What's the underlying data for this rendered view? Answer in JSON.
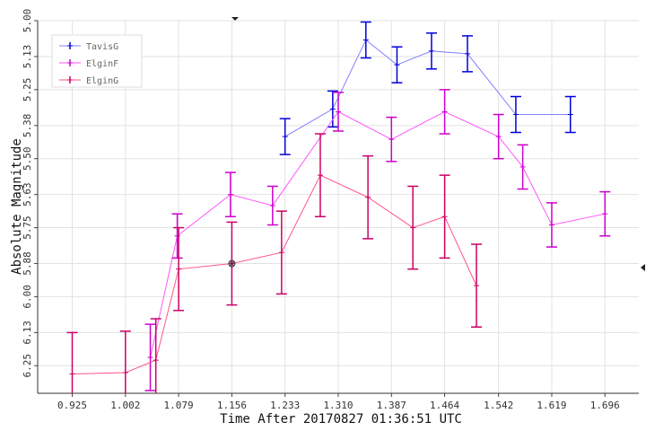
{
  "chart_data": {
    "type": "line",
    "xlabel": "Time After 20170827 01:36:51 UTC",
    "ylabel": "Absolute Magnitude",
    "xlim": [
      0.875,
      1.745
    ],
    "ylim": [
      6.35,
      5.0
    ],
    "y_inverted": true,
    "grid": true,
    "legend_position": "top-left",
    "x_ticks": [
      "0.925",
      "1.002",
      "1.079",
      "1.156",
      "1.233",
      "1.310",
      "1.387",
      "1.464",
      "1.542",
      "1.619",
      "1.696"
    ],
    "y_ticks": [
      "5.00",
      "5.13",
      "5.25",
      "5.38",
      "5.50",
      "5.63",
      "5.75",
      "5.88",
      "6.00",
      "6.13",
      "6.25"
    ],
    "series": [
      {
        "name": "TavisG",
        "color": "#0000dd",
        "line_color": "#8080ff",
        "points": [
          {
            "x": 1.233,
            "y": 5.42,
            "err": 0.065
          },
          {
            "x": 1.302,
            "y": 5.32,
            "err": 0.065
          },
          {
            "x": 1.35,
            "y": 5.07,
            "err": 0.065
          },
          {
            "x": 1.395,
            "y": 5.16,
            "err": 0.065
          },
          {
            "x": 1.445,
            "y": 5.11,
            "err": 0.065
          },
          {
            "x": 1.497,
            "y": 5.12,
            "err": 0.065
          },
          {
            "x": 1.567,
            "y": 5.34,
            "err": 0.065
          },
          {
            "x": 1.646,
            "y": 5.34,
            "err": 0.065
          }
        ]
      },
      {
        "name": "ElginF",
        "color": "#cc00cc",
        "line_color": "#ff55ff",
        "points": [
          {
            "x": 1.038,
            "y": 6.22,
            "err": 0.12
          },
          {
            "x": 1.077,
            "y": 5.78,
            "err": 0.08
          },
          {
            "x": 1.154,
            "y": 5.63,
            "err": 0.08
          },
          {
            "x": 1.215,
            "y": 5.67,
            "err": 0.07
          },
          {
            "x": 1.31,
            "y": 5.33,
            "err": 0.07
          },
          {
            "x": 1.387,
            "y": 5.43,
            "err": 0.08
          },
          {
            "x": 1.464,
            "y": 5.33,
            "err": 0.08
          },
          {
            "x": 1.542,
            "y": 5.42,
            "err": 0.08
          },
          {
            "x": 1.577,
            "y": 5.53,
            "err": 0.08
          },
          {
            "x": 1.619,
            "y": 5.74,
            "err": 0.08
          },
          {
            "x": 1.696,
            "y": 5.7,
            "err": 0.08
          }
        ]
      },
      {
        "name": "ElginG",
        "color": "#cc0066",
        "line_color": "#ff5588",
        "points": [
          {
            "x": 0.925,
            "y": 6.28,
            "err": 0.15
          },
          {
            "x": 1.002,
            "y": 6.275,
            "err": 0.15
          },
          {
            "x": 1.046,
            "y": 6.23,
            "err": 0.15
          },
          {
            "x": 1.079,
            "y": 5.9,
            "err": 0.15
          },
          {
            "x": 1.156,
            "y": 5.88,
            "err": 0.15
          },
          {
            "x": 1.228,
            "y": 5.84,
            "err": 0.15
          },
          {
            "x": 1.284,
            "y": 5.56,
            "err": 0.15
          },
          {
            "x": 1.353,
            "y": 5.64,
            "err": 0.15
          },
          {
            "x": 1.418,
            "y": 5.75,
            "err": 0.15
          },
          {
            "x": 1.464,
            "y": 5.71,
            "err": 0.15
          },
          {
            "x": 1.51,
            "y": 5.96,
            "err": 0.15
          }
        ]
      }
    ]
  }
}
